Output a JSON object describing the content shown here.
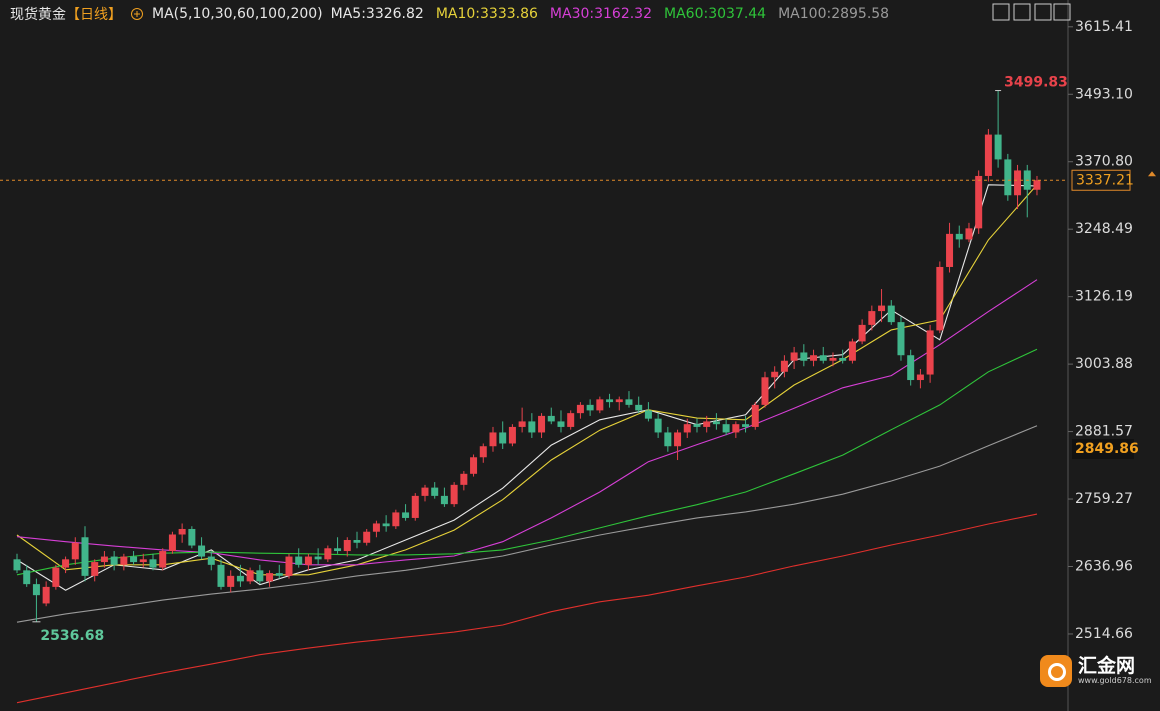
{
  "chart_data": {
    "type": "candlestick",
    "title": "现货黄金",
    "period": "【日线】",
    "indicator": "MA(5,10,30,60,100,200)",
    "up_color": "#ea434c",
    "down_color": "#41b58b",
    "ylim": [
      2375,
      3664
    ],
    "yticks": [
      3615.41,
      {
        "value": 3493.1,
        "label": "3493.10"
      },
      {
        "value": 3370.8,
        "label": "3370.80"
      },
      3248.49,
      3126.19,
      3003.88,
      2881.57,
      2759.27,
      2636.96,
      2514.66
    ],
    "level": 2849.86,
    "candles": [
      [
        2650,
        2660,
        2625,
        2630
      ],
      [
        2630,
        2640,
        2600,
        2605
      ],
      [
        2605,
        2615,
        2536.68,
        2585
      ],
      [
        2570,
        2610,
        2565,
        2600
      ],
      [
        2600,
        2640,
        2595,
        2635
      ],
      [
        2635,
        2655,
        2625,
        2650
      ],
      [
        2650,
        2690,
        2640,
        2680
      ],
      [
        2690,
        2710,
        2610,
        2620
      ],
      [
        2620,
        2650,
        2610,
        2645
      ],
      [
        2645,
        2665,
        2635,
        2655
      ],
      [
        2655,
        2665,
        2630,
        2640
      ],
      [
        2640,
        2660,
        2630,
        2655
      ],
      [
        2655,
        2665,
        2640,
        2645
      ],
      [
        2645,
        2660,
        2635,
        2650
      ],
      [
        2650,
        2660,
        2630,
        2635
      ],
      [
        2635,
        2670,
        2630,
        2665
      ],
      [
        2665,
        2700,
        2660,
        2695
      ],
      [
        2695,
        2715,
        2680,
        2705
      ],
      [
        2705,
        2710,
        2670,
        2675
      ],
      [
        2675,
        2690,
        2650,
        2655
      ],
      [
        2655,
        2665,
        2630,
        2640
      ],
      [
        2640,
        2650,
        2595,
        2600
      ],
      [
        2600,
        2630,
        2590,
        2620
      ],
      [
        2620,
        2640,
        2600,
        2610
      ],
      [
        2610,
        2635,
        2605,
        2630
      ],
      [
        2630,
        2640,
        2605,
        2610
      ],
      [
        2610,
        2630,
        2600,
        2625
      ],
      [
        2625,
        2640,
        2615,
        2620
      ],
      [
        2620,
        2660,
        2615,
        2655
      ],
      [
        2655,
        2670,
        2635,
        2640
      ],
      [
        2640,
        2660,
        2630,
        2655
      ],
      [
        2655,
        2670,
        2640,
        2650
      ],
      [
        2650,
        2675,
        2645,
        2670
      ],
      [
        2670,
        2690,
        2660,
        2665
      ],
      [
        2665,
        2690,
        2655,
        2685
      ],
      [
        2685,
        2700,
        2670,
        2680
      ],
      [
        2680,
        2705,
        2675,
        2700
      ],
      [
        2700,
        2720,
        2690,
        2715
      ],
      [
        2715,
        2730,
        2700,
        2710
      ],
      [
        2710,
        2740,
        2705,
        2735
      ],
      [
        2735,
        2750,
        2720,
        2725
      ],
      [
        2725,
        2770,
        2720,
        2765
      ],
      [
        2765,
        2785,
        2755,
        2780
      ],
      [
        2780,
        2790,
        2760,
        2765
      ],
      [
        2765,
        2780,
        2745,
        2750
      ],
      [
        2750,
        2790,
        2745,
        2785
      ],
      [
        2785,
        2810,
        2775,
        2805
      ],
      [
        2805,
        2840,
        2800,
        2835
      ],
      [
        2835,
        2860,
        2825,
        2855
      ],
      [
        2855,
        2890,
        2845,
        2880
      ],
      [
        2880,
        2900,
        2850,
        2860
      ],
      [
        2860,
        2895,
        2855,
        2890
      ],
      [
        2890,
        2925,
        2880,
        2900
      ],
      [
        2900,
        2915,
        2870,
        2880
      ],
      [
        2880,
        2915,
        2870,
        2910
      ],
      [
        2910,
        2925,
        2895,
        2900
      ],
      [
        2900,
        2920,
        2880,
        2890
      ],
      [
        2890,
        2920,
        2885,
        2915
      ],
      [
        2915,
        2935,
        2905,
        2930
      ],
      [
        2930,
        2940,
        2910,
        2920
      ],
      [
        2920,
        2945,
        2915,
        2940
      ],
      [
        2940,
        2950,
        2925,
        2935
      ],
      [
        2935,
        2945,
        2920,
        2940
      ],
      [
        2940,
        2955,
        2925,
        2930
      ],
      [
        2930,
        2945,
        2915,
        2920
      ],
      [
        2920,
        2935,
        2900,
        2905
      ],
      [
        2905,
        2915,
        2870,
        2880
      ],
      [
        2880,
        2890,
        2845,
        2855
      ],
      [
        2855,
        2885,
        2830,
        2880
      ],
      [
        2880,
        2905,
        2870,
        2895
      ],
      [
        2895,
        2905,
        2880,
        2890
      ],
      [
        2890,
        2910,
        2880,
        2900
      ],
      [
        2900,
        2915,
        2885,
        2895
      ],
      [
        2895,
        2905,
        2875,
        2880
      ],
      [
        2880,
        2900,
        2870,
        2895
      ],
      [
        2895,
        2910,
        2880,
        2890
      ],
      [
        2890,
        2935,
        2885,
        2930
      ],
      [
        2930,
        2990,
        2925,
        2980
      ],
      [
        2980,
        3000,
        2960,
        2990
      ],
      [
        2990,
        3020,
        2980,
        3010
      ],
      [
        3010,
        3035,
        2995,
        3025
      ],
      [
        3025,
        3040,
        3000,
        3010
      ],
      [
        3010,
        3030,
        3000,
        3020
      ],
      [
        3020,
        3035,
        3005,
        3010
      ],
      [
        3010,
        3025,
        3000,
        3015
      ],
      [
        3015,
        3030,
        3005,
        3010
      ],
      [
        3010,
        3050,
        3005,
        3045
      ],
      [
        3045,
        3085,
        3040,
        3075
      ],
      [
        3075,
        3110,
        3065,
        3100
      ],
      [
        3100,
        3140,
        3080,
        3110
      ],
      [
        3110,
        3120,
        3075,
        3080
      ],
      [
        3080,
        3090,
        3010,
        3020
      ],
      [
        3020,
        3030,
        2965,
        2975
      ],
      [
        2975,
        2995,
        2960,
        2985
      ],
      [
        2985,
        3075,
        2970,
        3065
      ],
      [
        3065,
        3190,
        3060,
        3180
      ],
      [
        3180,
        3260,
        3170,
        3240
      ],
      [
        3240,
        3255,
        3215,
        3230
      ],
      [
        3230,
        3260,
        3225,
        3250
      ],
      [
        3250,
        3355,
        3240,
        3345
      ],
      [
        3345,
        3430,
        3335,
        3420
      ],
      [
        3420,
        3499.83,
        3360,
        3375
      ],
      [
        3375,
        3385,
        3300,
        3310
      ],
      [
        3310,
        3365,
        3285,
        3355
      ],
      [
        3355,
        3365,
        3270,
        3320
      ],
      [
        3320,
        3345,
        3310,
        3337.21
      ]
    ],
    "series": [
      {
        "name": "MA5:3326.82",
        "color": "#e8e8e8",
        "x": [
          0,
          5,
          10,
          15,
          20,
          25,
          30,
          35,
          40,
          45,
          50,
          55,
          60,
          65,
          70,
          75,
          80,
          85,
          90,
          95,
          100,
          105
        ],
        "values": [
          2649,
          2594,
          2640,
          2631,
          2667,
          2604,
          2631,
          2649,
          2685,
          2721,
          2779,
          2857,
          2903,
          2921,
          2894,
          2912,
          3012,
          3021,
          3102,
          3048,
          3329,
          3327
        ]
      },
      {
        "name": "MA10:3333.86",
        "color": "#e6d23a",
        "x": [
          0,
          5,
          10,
          15,
          20,
          25,
          30,
          35,
          40,
          45,
          50,
          55,
          60,
          65,
          70,
          75,
          80,
          85,
          90,
          95,
          100,
          105
        ],
        "values": [
          2694,
          2631,
          2640,
          2640,
          2652,
          2622,
          2622,
          2640,
          2667,
          2703,
          2758,
          2830,
          2884,
          2921,
          2906,
          2903,
          2966,
          3012,
          3066,
          3084,
          3229,
          3329
        ]
      },
      {
        "name": "MA30:3162.32",
        "color": "#d63fd6",
        "x": [
          0,
          5,
          10,
          15,
          20,
          25,
          30,
          35,
          40,
          45,
          50,
          55,
          60,
          65,
          70,
          75,
          80,
          85,
          90,
          95,
          100,
          105
        ],
        "values": [
          2691,
          2682,
          2674,
          2667,
          2662,
          2649,
          2640,
          2640,
          2649,
          2656,
          2682,
          2725,
          2772,
          2827,
          2858,
          2888,
          2924,
          2961,
          2983,
          3039,
          3099,
          3157
        ]
      },
      {
        "name": "MA60:3037.44",
        "color": "#2fc43a",
        "x": [
          0,
          5,
          10,
          15,
          20,
          25,
          30,
          35,
          40,
          45,
          50,
          55,
          60,
          65,
          70,
          75,
          80,
          85,
          90,
          95,
          100,
          105
        ],
        "values": [
          2622,
          2640,
          2652,
          2661,
          2663,
          2661,
          2660,
          2658,
          2658,
          2660,
          2667,
          2685,
          2707,
          2729,
          2749,
          2772,
          2805,
          2839,
          2885,
          2930,
          2990,
          3031
        ]
      },
      {
        "name": "MA100:2895.58",
        "color": "#9a9a9a",
        "x": [
          0,
          5,
          10,
          15,
          20,
          25,
          30,
          35,
          40,
          45,
          50,
          55,
          60,
          65,
          70,
          75,
          80,
          85,
          90,
          95,
          100,
          105
        ],
        "values": [
          2536,
          2551,
          2563,
          2576,
          2587,
          2596,
          2607,
          2620,
          2630,
          2643,
          2656,
          2676,
          2694,
          2710,
          2725,
          2736,
          2750,
          2768,
          2792,
          2819,
          2856,
          2892
        ]
      },
      {
        "color": "#e0302c",
        "x": [
          0,
          5,
          10,
          15,
          20,
          25,
          30,
          35,
          40,
          45,
          50,
          55,
          60,
          65,
          70,
          75,
          80,
          85,
          90,
          95,
          100,
          105
        ],
        "values": [
          2390,
          2408,
          2426,
          2444,
          2460,
          2477,
          2489,
          2500,
          2509,
          2518,
          2531,
          2555,
          2573,
          2585,
          2602,
          2618,
          2638,
          2656,
          2676,
          2694,
          2714,
          2732
        ]
      }
    ]
  },
  "watermark": {
    "name": "汇金网",
    "url": "www.gold678.com"
  }
}
